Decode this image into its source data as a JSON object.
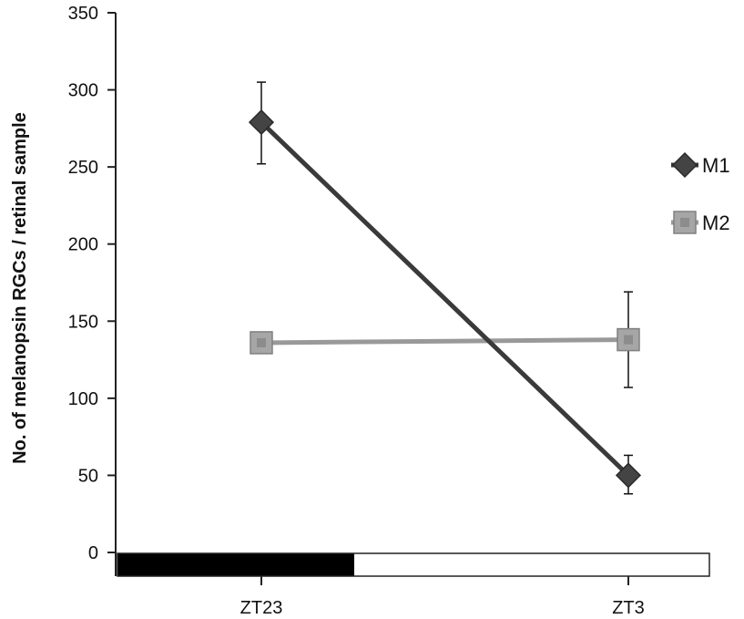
{
  "chart_data": {
    "type": "line",
    "title": "",
    "xlabel": "",
    "ylabel": "No. of melanopsin RGCs / retinal sample",
    "categories": [
      "ZT23",
      "ZT3"
    ],
    "ylim": [
      0,
      350
    ],
    "yticks": [
      0,
      50,
      100,
      150,
      200,
      250,
      300,
      350
    ],
    "grid": false,
    "legend_position": "right",
    "series": [
      {
        "name": "M1",
        "values": [
          279,
          50
        ],
        "error": [
          [
            252,
            305
          ],
          [
            38,
            63
          ]
        ],
        "marker": "diamond",
        "line_color": "#3a3a3a",
        "marker_color": "#444444"
      },
      {
        "name": "M2",
        "values": [
          136,
          138
        ],
        "error": [
          null,
          [
            107,
            169
          ]
        ],
        "marker": "square",
        "line_color": "#999999",
        "marker_color": "#a6a6a6"
      }
    ],
    "light_dark_bar": [
      {
        "phase": "dark",
        "from": 0.0,
        "to": 0.4,
        "color": "#000000"
      },
      {
        "phase": "light",
        "from": 0.4,
        "to": 1.0,
        "color": "#ffffff"
      }
    ]
  }
}
